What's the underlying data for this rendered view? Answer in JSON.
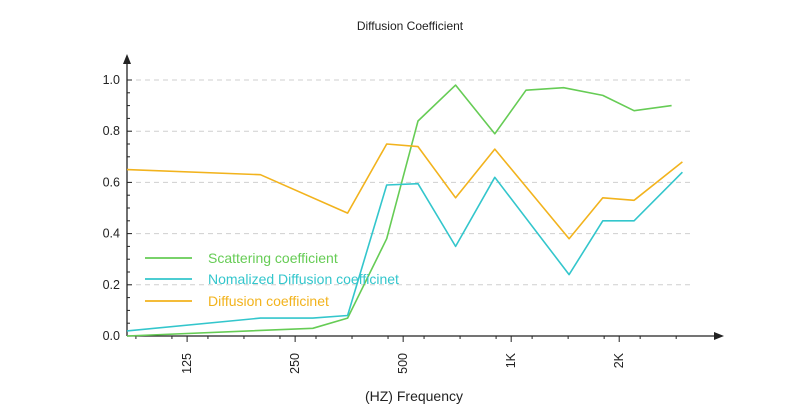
{
  "chart_data": {
    "type": "line",
    "title": "Diffusion Coefficient",
    "xlabel": "(HZ)  Frequency",
    "ylabel": "",
    "ylim": [
      0,
      1.0
    ],
    "y_ticks": [
      "0.0",
      "0.2",
      "0.4",
      "0.6",
      "0.8",
      "1.0"
    ],
    "x_ticks": [
      {
        "label": "125",
        "value": 125
      },
      {
        "label": "250",
        "value": 250
      },
      {
        "label": "500",
        "value": 500
      },
      {
        "label": "1K",
        "value": 1000
      },
      {
        "label": "2K",
        "value": 2000
      }
    ],
    "x_scale": "log",
    "xlim": [
      85,
      3150
    ],
    "grid": true,
    "legend": "lower-left",
    "series": [
      {
        "name": "Scattering coefficient",
        "color": "#66cc55",
        "x": [
          85,
          280,
          350,
          450,
          550,
          700,
          900,
          1100,
          1400,
          1800,
          2200,
          2800
        ],
        "y": [
          0.0,
          0.03,
          0.07,
          0.38,
          0.84,
          0.98,
          0.79,
          0.96,
          0.97,
          0.94,
          0.88,
          0.9
        ]
      },
      {
        "name": "Nomalized Diffusion coefficinet",
        "color": "#33c6cc",
        "x": [
          85,
          200,
          280,
          350,
          450,
          550,
          700,
          900,
          1450,
          1800,
          2200,
          3000
        ],
        "y": [
          0.02,
          0.07,
          0.07,
          0.08,
          0.59,
          0.595,
          0.35,
          0.62,
          0.24,
          0.45,
          0.45,
          0.64
        ]
      },
      {
        "name": "Diffusion coefficinet",
        "color": "#f2b31d",
        "x": [
          85,
          200,
          350,
          450,
          550,
          700,
          900,
          1450,
          1800,
          2200,
          3000
        ],
        "y": [
          0.65,
          0.63,
          0.48,
          0.75,
          0.74,
          0.54,
          0.73,
          0.38,
          0.54,
          0.53,
          0.68
        ]
      }
    ]
  }
}
